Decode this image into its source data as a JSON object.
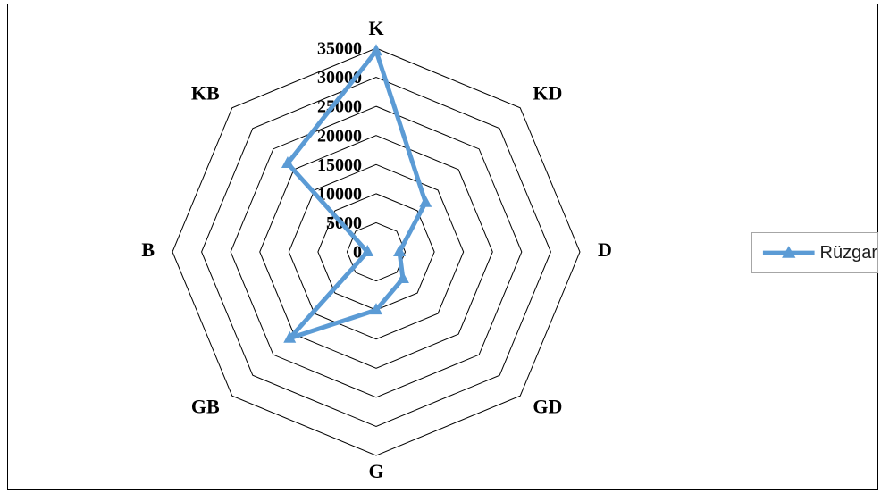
{
  "chart_data": {
    "type": "radar",
    "categories": [
      "K",
      "KD",
      "D",
      "GD",
      "G",
      "GB",
      "B",
      "KB"
    ],
    "series": [
      {
        "name": "Rüzgar",
        "values": [
          34500,
          12000,
          4000,
          6500,
          10000,
          21000,
          1500,
          21500
        ]
      }
    ],
    "rlim": [
      0,
      35000
    ],
    "ticks": [
      0,
      5000,
      10000,
      15000,
      20000,
      25000,
      30000,
      35000
    ],
    "tick_labels": [
      "0",
      "5000",
      "10000",
      "15000",
      "20000",
      "25000",
      "30000",
      "35000"
    ],
    "grid": true,
    "legend_position": "right",
    "marker": "triangle",
    "colors": {
      "series": "#5b9bd5",
      "grid": "#000000"
    }
  }
}
